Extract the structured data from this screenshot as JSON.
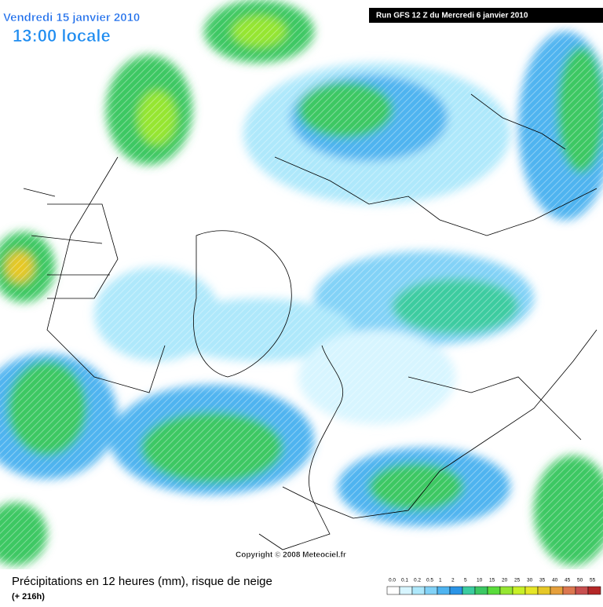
{
  "header": {
    "date": "Vendredi 15 janvier 2010",
    "time": "13:00 locale",
    "run": "Run GFS 12 Z du Mercredi 6 janvier 2010"
  },
  "copyright": "Copyright © 2008 Meteociel.fr",
  "footer": {
    "title": "Précipitations en 12 heures (mm), risque de neige",
    "lead": "(+ 216h)"
  },
  "legend": [
    {
      "label": "0.0",
      "color": "#ffffff"
    },
    {
      "label": "0.1",
      "color": "#d7f5ff"
    },
    {
      "label": "0.2",
      "color": "#aee8fb"
    },
    {
      "label": "0.5",
      "color": "#82d2f7"
    },
    {
      "label": "1",
      "color": "#4fb4f0"
    },
    {
      "label": "2",
      "color": "#2b94e6"
    },
    {
      "label": "5",
      "color": "#3ccca0"
    },
    {
      "label": "10",
      "color": "#3cc864"
    },
    {
      "label": "15",
      "color": "#5adc3c"
    },
    {
      "label": "20",
      "color": "#96e632"
    },
    {
      "label": "25",
      "color": "#c8f028"
    },
    {
      "label": "30",
      "color": "#e6e628"
    },
    {
      "label": "35",
      "color": "#e6c828"
    },
    {
      "label": "40",
      "color": "#e6a03c"
    },
    {
      "label": "45",
      "color": "#dc7850"
    },
    {
      "label": "50",
      "color": "#c85050"
    },
    {
      "label": "55",
      "color": "#b42828"
    }
  ]
}
